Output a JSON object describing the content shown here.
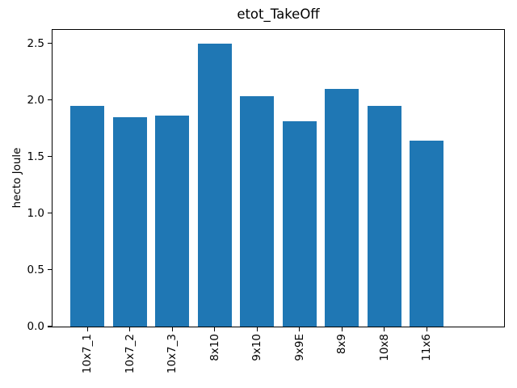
{
  "chart_data": {
    "type": "bar",
    "title": "etot_TakeOff",
    "xlabel": "",
    "ylabel": "hecto Joule",
    "categories": [
      "10x7_1",
      "10x7_2",
      "10x7_3",
      "8x10",
      "9x10",
      "9x9E",
      "8x9",
      "10x8",
      "11x6"
    ],
    "values": [
      1.95,
      1.85,
      1.86,
      2.5,
      2.03,
      1.81,
      2.1,
      1.95,
      1.64
    ],
    "ytick_labels": [
      "0.0",
      "0.5",
      "1.0",
      "1.5",
      "2.0",
      "2.5"
    ],
    "ytick_values": [
      0,
      0.5,
      1,
      1.5,
      2,
      2.5
    ],
    "ylim": [
      0,
      2.625
    ],
    "bar_color": "#1f77b4",
    "text_color": "#000000",
    "background_color": "#ffffff",
    "grid": false,
    "legend_position": "none",
    "xtick_rotation": 90
  }
}
